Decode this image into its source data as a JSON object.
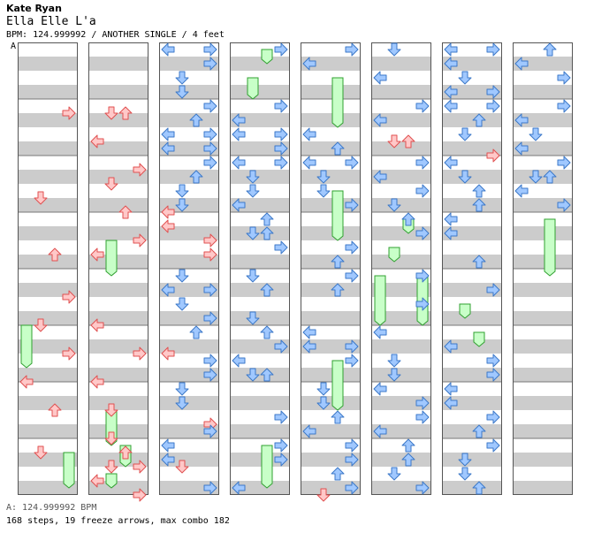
{
  "header": {
    "artist": "Kate Ryan",
    "song": "Ella Elle L'a",
    "info": "BPM: 124.999992 / ANOTHER SINGLE / 4 feet",
    "marker": "A"
  },
  "footer": {
    "bpm_line": "A: 124.999992 BPM",
    "stats": "168 steps, 19 freeze arrows, max combo 182"
  },
  "colors": {
    "stripe": "#cccccc",
    "arrow_red": "#ffc8c8",
    "arrow_red_stroke": "#e05050",
    "arrow_blue": "#a0c8ff",
    "arrow_blue_stroke": "#3c78c8",
    "freeze": "#c8ffc8",
    "freeze_stroke": "#30a030",
    "marker_line": "#00a0ff"
  },
  "chart_data": {
    "type": "step-chart",
    "columns": 8,
    "measures_per_column": 8,
    "lanes": [
      "left",
      "down",
      "up",
      "right"
    ],
    "notes": [
      [
        0,
        1.25,
        3
      ],
      [
        0,
        2.75,
        1
      ],
      [
        0,
        3.75,
        2
      ],
      [
        0,
        4.5,
        3
      ],
      [
        0,
        5,
        1
      ],
      [
        0,
        5.5,
        3
      ],
      [
        0,
        6,
        0
      ],
      [
        0,
        6.5,
        2
      ],
      [
        0,
        7.25,
        1
      ],
      [
        1,
        1.25,
        1
      ],
      [
        1,
        1.25,
        2
      ],
      [
        1,
        1.75,
        0
      ],
      [
        1,
        2.25,
        3
      ],
      [
        1,
        2.5,
        1
      ],
      [
        1,
        3,
        2
      ],
      [
        1,
        3.5,
        3
      ],
      [
        1,
        3.75,
        0
      ],
      [
        1,
        5,
        0
      ],
      [
        1,
        5.5,
        3
      ],
      [
        1,
        6,
        0
      ],
      [
        1,
        6.5,
        1
      ],
      [
        1,
        7,
        1
      ],
      [
        1,
        7.25,
        2
      ],
      [
        1,
        7.5,
        1
      ],
      [
        1,
        7.5,
        3
      ],
      [
        1,
        7.75,
        0
      ],
      [
        1,
        8,
        3
      ],
      [
        2,
        0.125,
        0
      ],
      [
        2,
        0.125,
        3
      ],
      [
        2,
        0.375,
        3
      ],
      [
        2,
        0.625,
        1
      ],
      [
        2,
        0.875,
        1
      ],
      [
        2,
        1.125,
        3
      ],
      [
        2,
        1.375,
        2
      ],
      [
        2,
        1.625,
        0
      ],
      [
        2,
        1.625,
        3
      ],
      [
        2,
        1.875,
        0
      ],
      [
        2,
        1.875,
        3
      ],
      [
        2,
        2.125,
        3
      ],
      [
        2,
        2.375,
        2
      ],
      [
        2,
        2.625,
        1
      ],
      [
        2,
        2.875,
        1
      ],
      [
        2,
        3,
        0
      ],
      [
        2,
        3.25,
        0
      ],
      [
        2,
        3.5,
        3
      ],
      [
        2,
        3.75,
        3
      ],
      [
        2,
        4.125,
        1
      ],
      [
        2,
        4.375,
        0
      ],
      [
        2,
        4.375,
        3
      ],
      [
        2,
        4.625,
        1
      ],
      [
        2,
        4.875,
        3
      ],
      [
        2,
        5.125,
        2
      ],
      [
        2,
        5.5,
        0
      ],
      [
        2,
        5.625,
        3
      ],
      [
        2,
        5.875,
        3
      ],
      [
        2,
        6.125,
        1
      ],
      [
        2,
        6.375,
        1
      ],
      [
        2,
        6.75,
        3
      ],
      [
        2,
        6.875,
        3
      ],
      [
        2,
        7.125,
        0
      ],
      [
        2,
        7.375,
        0
      ],
      [
        2,
        7.5,
        1
      ],
      [
        2,
        7.875,
        3
      ],
      [
        3,
        0.125,
        3
      ],
      [
        3,
        1.125,
        3
      ],
      [
        3,
        1.375,
        0
      ],
      [
        3,
        1.625,
        0
      ],
      [
        3,
        1.625,
        3
      ],
      [
        3,
        1.875,
        3
      ],
      [
        3,
        2.125,
        0
      ],
      [
        3,
        2.125,
        3
      ],
      [
        3,
        2.375,
        1
      ],
      [
        3,
        2.625,
        1
      ],
      [
        3,
        2.875,
        0
      ],
      [
        3,
        3.125,
        2
      ],
      [
        3,
        3.375,
        1
      ],
      [
        3,
        3.375,
        2
      ],
      [
        3,
        3.625,
        3
      ],
      [
        3,
        4.125,
        1
      ],
      [
        3,
        4.375,
        2
      ],
      [
        3,
        4.875,
        1
      ],
      [
        3,
        5.125,
        2
      ],
      [
        3,
        5.375,
        3
      ],
      [
        3,
        5.625,
        0
      ],
      [
        3,
        5.875,
        1
      ],
      [
        3,
        5.875,
        2
      ],
      [
        3,
        6.625,
        3
      ],
      [
        3,
        7.125,
        3
      ],
      [
        3,
        7.375,
        3
      ],
      [
        3,
        7.875,
        0
      ],
      [
        4,
        0.125,
        3
      ],
      [
        4,
        0.375,
        0
      ],
      [
        4,
        1.625,
        0
      ],
      [
        4,
        1.875,
        2
      ],
      [
        4,
        2.125,
        0
      ],
      [
        4,
        2.125,
        3
      ],
      [
        4,
        2.375,
        1
      ],
      [
        4,
        2.625,
        1
      ],
      [
        4,
        2.875,
        3
      ],
      [
        4,
        3.625,
        3
      ],
      [
        4,
        3.875,
        2
      ],
      [
        4,
        4.125,
        3
      ],
      [
        4,
        4.375,
        2
      ],
      [
        4,
        5.125,
        0
      ],
      [
        4,
        5.375,
        0
      ],
      [
        4,
        5.375,
        3
      ],
      [
        4,
        5.625,
        3
      ],
      [
        4,
        6.125,
        1
      ],
      [
        4,
        6.375,
        1
      ],
      [
        4,
        6.625,
        2
      ],
      [
        4,
        6.875,
        0
      ],
      [
        4,
        7.125,
        3
      ],
      [
        4,
        7.375,
        3
      ],
      [
        4,
        7.625,
        2
      ],
      [
        4,
        7.875,
        3
      ],
      [
        4,
        8,
        1
      ],
      [
        5,
        0.125,
        1
      ],
      [
        5,
        0.625,
        0
      ],
      [
        5,
        1.125,
        3
      ],
      [
        5,
        1.375,
        0
      ],
      [
        5,
        1.75,
        2
      ],
      [
        5,
        1.75,
        1
      ],
      [
        5,
        2.125,
        3
      ],
      [
        5,
        2.375,
        0
      ],
      [
        5,
        2.625,
        3
      ],
      [
        5,
        2.875,
        1
      ],
      [
        5,
        3.125,
        2
      ],
      [
        5,
        3.375,
        3
      ],
      [
        5,
        4.125,
        3
      ],
      [
        5,
        4.625,
        3
      ],
      [
        5,
        5.125,
        0
      ],
      [
        5,
        5.625,
        1
      ],
      [
        5,
        5.875,
        1
      ],
      [
        5,
        6.125,
        0
      ],
      [
        5,
        6.375,
        3
      ],
      [
        5,
        6.625,
        3
      ],
      [
        5,
        6.875,
        0
      ],
      [
        5,
        7.125,
        2
      ],
      [
        5,
        7.375,
        2
      ],
      [
        5,
        7.625,
        1
      ],
      [
        5,
        7.875,
        3
      ],
      [
        6,
        0.125,
        0
      ],
      [
        6,
        0.125,
        3
      ],
      [
        6,
        0.375,
        0
      ],
      [
        6,
        0.625,
        1
      ],
      [
        6,
        0.875,
        0
      ],
      [
        6,
        0.875,
        3
      ],
      [
        6,
        1.125,
        0
      ],
      [
        6,
        1.125,
        3
      ],
      [
        6,
        1.375,
        2
      ],
      [
        6,
        1.625,
        1
      ],
      [
        6,
        2,
        3
      ],
      [
        6,
        2.125,
        0
      ],
      [
        6,
        2.375,
        1
      ],
      [
        6,
        2.625,
        2
      ],
      [
        6,
        2.875,
        2
      ],
      [
        6,
        3.125,
        0
      ],
      [
        6,
        3.375,
        0
      ],
      [
        6,
        3.875,
        2
      ],
      [
        6,
        4.375,
        3
      ],
      [
        6,
        5.375,
        0
      ],
      [
        6,
        5.625,
        3
      ],
      [
        6,
        5.875,
        3
      ],
      [
        6,
        6.125,
        0
      ],
      [
        6,
        6.375,
        0
      ],
      [
        6,
        6.625,
        3
      ],
      [
        6,
        6.875,
        2
      ],
      [
        6,
        7.125,
        3
      ],
      [
        6,
        7.375,
        1
      ],
      [
        6,
        7.625,
        1
      ],
      [
        6,
        7.875,
        2
      ],
      [
        7,
        0.125,
        2
      ],
      [
        7,
        0.375,
        0
      ],
      [
        7,
        0.625,
        3
      ],
      [
        7,
        1.125,
        3
      ],
      [
        7,
        1.375,
        0
      ],
      [
        7,
        1.625,
        1
      ],
      [
        7,
        1.875,
        0
      ],
      [
        7,
        2.125,
        3
      ],
      [
        7,
        2.375,
        1
      ],
      [
        7,
        2.375,
        2
      ],
      [
        7,
        2.625,
        0
      ],
      [
        7,
        2.875,
        3
      ]
    ],
    "freeze_notes": [
      [
        0,
        5,
        0,
        5.75
      ],
      [
        0,
        7.25,
        3,
        7.875
      ],
      [
        1,
        3.5,
        1,
        4.125
      ],
      [
        1,
        6.5,
        1,
        7.125
      ],
      [
        1,
        7.125,
        2,
        7.5
      ],
      [
        1,
        7.625,
        1,
        7.875
      ],
      [
        3,
        0.125,
        2,
        0.375
      ],
      [
        3,
        0.625,
        1,
        1
      ],
      [
        3,
        7.125,
        2,
        7.875
      ],
      [
        4,
        0.625,
        2,
        1.5
      ],
      [
        4,
        2.625,
        2,
        3.5
      ],
      [
        4,
        5.625,
        2,
        6.5
      ],
      [
        5,
        3.125,
        2,
        3.375
      ],
      [
        5,
        3.625,
        1,
        3.875
      ],
      [
        5,
        4.125,
        0,
        5
      ],
      [
        5,
        4.125,
        3,
        5
      ],
      [
        6,
        4.625,
        1,
        4.875
      ],
      [
        6,
        5.125,
        2,
        5.375
      ],
      [
        7,
        3.125,
        2,
        4.125
      ]
    ]
  }
}
